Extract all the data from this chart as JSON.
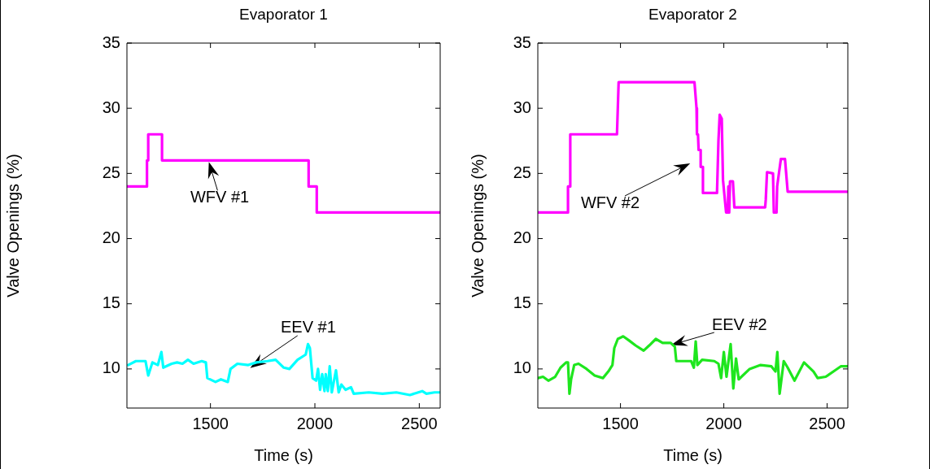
{
  "chart_data": [
    {
      "type": "line",
      "title": "Evaporator 1",
      "xlabel": "Time (s)",
      "ylabel": "Valve Openings (%)",
      "xlim": [
        1100,
        2600
      ],
      "xticks": [
        1500,
        2000,
        2500
      ],
      "ylim": [
        7,
        35
      ],
      "yticks": [
        10,
        15,
        20,
        25,
        30,
        35
      ],
      "marker": "none",
      "line_style": "solid",
      "series": [
        {
          "color": "#ff00ff",
          "x": [
            1100,
            1196,
            1196,
            1202,
            1202,
            1268,
            1268,
            1970,
            1970,
            2009,
            2009,
            2600
          ],
          "values": [
            24,
            24,
            26,
            26,
            28,
            28,
            26,
            26,
            24,
            24,
            22,
            22
          ]
        },
        {
          "color": "#00ffff",
          "x": [
            1106,
            1143,
            1189,
            1202,
            1222,
            1248,
            1265,
            1274,
            1314,
            1340,
            1366,
            1392,
            1419,
            1458,
            1478,
            1485,
            1524,
            1550,
            1583,
            1596,
            1629,
            1681,
            1720,
            1773,
            1812,
            1851,
            1878,
            1917,
            1956,
            1967,
            1976,
            1989,
            2006,
            2015,
            2025,
            2035,
            2046,
            2052,
            2062,
            2071,
            2081,
            2101,
            2114,
            2127,
            2147,
            2173,
            2186,
            2258,
            2324,
            2390,
            2455,
            2514,
            2534,
            2573,
            2600
          ],
          "values": [
            10.3,
            10.6,
            10.6,
            9.5,
            10.5,
            10.3,
            11.3,
            10.1,
            10.4,
            10.5,
            10.4,
            10.7,
            10.4,
            10.6,
            10.5,
            9.3,
            9.0,
            9.2,
            9.0,
            10.0,
            10.4,
            10.3,
            10.5,
            10.6,
            10.7,
            10.1,
            10.0,
            10.7,
            11.1,
            11.9,
            11.6,
            9.3,
            9.1,
            10.0,
            8.4,
            9.6,
            8.3,
            9.6,
            8.3,
            10.2,
            8.2,
            9.9,
            8.2,
            8.8,
            8.4,
            8.6,
            8.1,
            8.2,
            8.1,
            8.2,
            8.0,
            8.3,
            8.1,
            8.2,
            8.2
          ]
        }
      ],
      "annotations": [
        {
          "text": "WFV #1",
          "x": 1490,
          "y": 26
        },
        {
          "text": "EEV #1",
          "x": 1684,
          "y": 10
        }
      ]
    },
    {
      "type": "line",
      "title": "Evaporator 2",
      "xlabel": "Time (s)",
      "ylabel": "Valve Openings (%)",
      "xlim": [
        1100,
        2600
      ],
      "xticks": [
        1500,
        2000,
        2500
      ],
      "ylim": [
        7,
        35
      ],
      "yticks": [
        10,
        15,
        20,
        25,
        30,
        35
      ],
      "marker": "none",
      "line_style": "solid",
      "series": [
        {
          "color": "#ff00ff",
          "x": [
            1100,
            1246,
            1246,
            1257,
            1257,
            1483,
            1487,
            1491,
            1858,
            1868,
            1870,
            1875,
            1878,
            1888,
            1888,
            1899,
            1899,
            1967,
            1974,
            1980,
            1990,
            1996,
            2011,
            2019,
            2022,
            2026,
            2030,
            2044,
            2051,
            2200,
            2203,
            2209,
            2238,
            2242,
            2255,
            2258,
            2276,
            2296,
            2309,
            2600
          ],
          "values": [
            22,
            22,
            24,
            24,
            28,
            28,
            30,
            32,
            32,
            30,
            28,
            28,
            26.8,
            26.8,
            25.5,
            25.5,
            23.5,
            23.5,
            27.5,
            29.5,
            29.2,
            24.5,
            22,
            22,
            24,
            22,
            24.4,
            24.4,
            22.4,
            22.4,
            23,
            25.1,
            25,
            22,
            22,
            24,
            26.1,
            26.1,
            23.6,
            23.6
          ]
        },
        {
          "color": "#1ee61e",
          "x": [
            1101,
            1125,
            1151,
            1184,
            1210,
            1237,
            1246,
            1253,
            1261,
            1276,
            1297,
            1336,
            1375,
            1415,
            1441,
            1461,
            1470,
            1487,
            1513,
            1540,
            1573,
            1612,
            1639,
            1671,
            1704,
            1743,
            1763,
            1770,
            1809,
            1842,
            1855,
            1864,
            1872,
            1895,
            1954,
            1974,
            1987,
            2000,
            2013,
            2033,
            2046,
            2059,
            2072,
            2125,
            2178,
            2230,
            2250,
            2259,
            2270,
            2290,
            2309,
            2342,
            2388,
            2434,
            2454,
            2493,
            2539,
            2566,
            2600
          ],
          "values": [
            9.3,
            9.4,
            9.1,
            9.4,
            10.1,
            10.5,
            10.5,
            8.1,
            9.2,
            10.3,
            10.4,
            10.0,
            9.5,
            9.3,
            9.8,
            10.3,
            11.6,
            12.3,
            12.5,
            12.2,
            11.8,
            11.4,
            11.8,
            12.3,
            12.0,
            12.0,
            11.7,
            10.6,
            10.6,
            10.6,
            10.1,
            12.1,
            10.3,
            10.7,
            10.6,
            10.4,
            9.3,
            11.3,
            9.4,
            11.9,
            8.5,
            10.8,
            9.2,
            10.0,
            10.3,
            10.2,
            9.8,
            11.3,
            8.1,
            10.6,
            10.1,
            9.1,
            10.5,
            9.8,
            9.3,
            9.4,
            9.9,
            10.2,
            10.2
          ]
        }
      ],
      "annotations": [
        "WFV #2",
        {
          "text": "EEV #2",
          "x": 1737,
          "y": 11.8
        }
      ]
    }
  ]
}
